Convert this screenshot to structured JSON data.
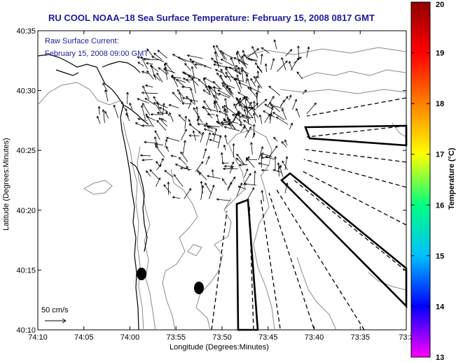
{
  "header": {
    "title": "RU COOL  NOAA−18  Sea Surface Temperature:  February 15, 2008 0817 GMT"
  },
  "info": {
    "line1": "Raw Surface Current:",
    "line2": "February 15, 2008 09:00 GMT"
  },
  "scale": {
    "label": "50 cm/s"
  },
  "axes": {
    "xlabel": "Longitude (Degrees:Minutes)",
    "ylabel": "Latitude (Degrees:Minutes)",
    "xticks": [
      "74:10",
      "74:05",
      "74:00",
      "73:55",
      "73:50",
      "73:45",
      "73:40",
      "73:35",
      "73:3"
    ],
    "yticks": [
      "40:35",
      "40:30",
      "40:25",
      "40:20",
      "40:15",
      "40:10"
    ]
  },
  "colorbar": {
    "label": "Temperature (°C)",
    "ticks": [
      "20",
      "19",
      "18",
      "17",
      "16",
      "15",
      "14",
      "13"
    ],
    "min": 13,
    "max": 20,
    "colors": [
      "#ff00ff",
      "#0000ff",
      "#00c0ff",
      "#00ff80",
      "#ffff00",
      "#ff8000",
      "#ff0000",
      "#900000"
    ]
  }
}
